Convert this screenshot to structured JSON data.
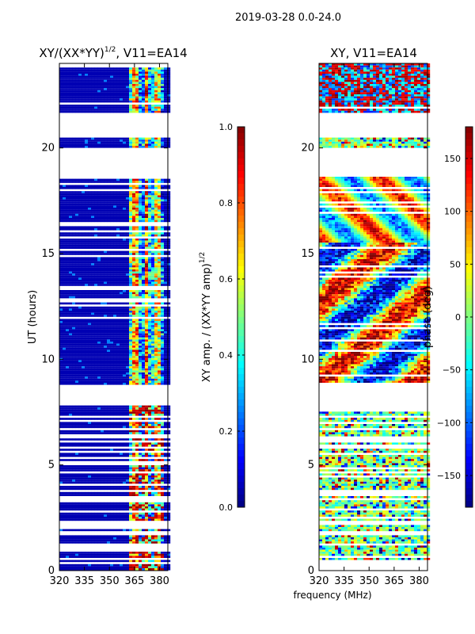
{
  "figure": {
    "suptitle": "2019-03-28 0.0-24.0",
    "xlabel": "frequency (MHz)"
  },
  "chart_data": [
    {
      "type": "heatmap",
      "title": "XY/(XX*YY)",
      "title_sup": "1/2",
      "title_suffix": ", V11=EA14",
      "xlabel": "",
      "ylabel": "UT (hours)",
      "xlim": [
        320,
        385
      ],
      "ylim": [
        0,
        24
      ],
      "xticks": [
        320,
        335,
        350,
        365,
        380
      ],
      "yticks": [
        0,
        5,
        10,
        15,
        20
      ],
      "colorbar": {
        "label": "XY amp. / (XX*YY amp)",
        "label_sup": "1/2",
        "range": [
          0.0,
          1.0
        ],
        "ticks": [
          0.0,
          0.2,
          0.4,
          0.6,
          0.8,
          1.0
        ],
        "tick_labels": [
          "0.0",
          "0.2",
          "0.4",
          "0.6",
          "0.8",
          "1.0"
        ],
        "colormap": "jet"
      },
      "blank_ut_ranges": [
        [
          7.85,
          8.75
        ],
        [
          18.6,
          20.0
        ],
        [
          20.55,
          21.7
        ]
      ],
      "band_features": [
        {
          "f_start": 320,
          "f_end": 361,
          "value": 0.05
        },
        {
          "f_start": 361,
          "f_end": 364,
          "value": 0.45
        },
        {
          "f_start": 364,
          "f_end": 367,
          "value": 0.7
        },
        {
          "f_start": 367,
          "f_end": 371,
          "value": 0.3
        },
        {
          "f_start": 371,
          "f_end": 374,
          "value": 0.75
        },
        {
          "f_start": 374,
          "f_end": 377,
          "value": 0.35
        },
        {
          "f_start": 377,
          "f_end": 380,
          "value": 0.6
        },
        {
          "f_start": 380,
          "f_end": 382,
          "value": 0.25
        },
        {
          "f_start": 382,
          "f_end": 385,
          "value": 0.05
        }
      ]
    },
    {
      "type": "heatmap",
      "title": "XY, V11=EA14",
      "xlabel": "frequency (MHz)",
      "ylabel": "",
      "xlim": [
        320,
        385
      ],
      "ylim": [
        0,
        24
      ],
      "xticks": [
        320,
        335,
        350,
        365,
        380
      ],
      "yticks": [
        0,
        5,
        10,
        15,
        20
      ],
      "colorbar": {
        "label": "phase (deg)",
        "range": [
          -180,
          180
        ],
        "ticks": [
          -150,
          -100,
          -50,
          0,
          50,
          100,
          150
        ],
        "tick_labels": [
          "−150",
          "−100",
          "−50",
          "0",
          "50",
          "100",
          "150"
        ],
        "colormap": "jet"
      },
      "blank_ut_ranges": [
        [
          7.85,
          8.75
        ],
        [
          18.6,
          20.0
        ],
        [
          20.55,
          21.7
        ]
      ]
    }
  ]
}
